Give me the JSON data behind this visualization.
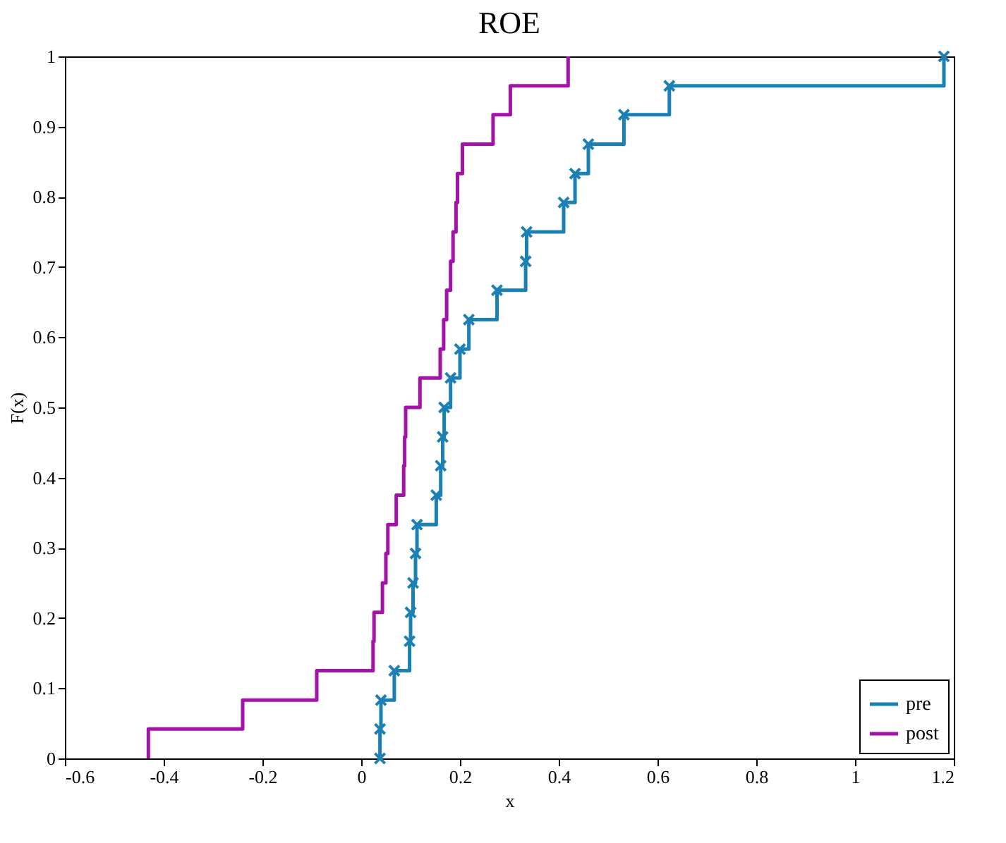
{
  "chart_data": {
    "type": "step",
    "title": "ROE",
    "xlabel": "x",
    "ylabel": "F(x)",
    "xlim": [
      -0.6,
      1.2
    ],
    "ylim": [
      0,
      1
    ],
    "xticks": [
      -0.6,
      -0.4,
      -0.2,
      0,
      0.2,
      0.4,
      0.6,
      0.8,
      1,
      1.2
    ],
    "yticks": [
      0,
      0.1,
      0.2,
      0.3,
      0.4,
      0.5,
      0.6,
      0.7,
      0.8,
      0.9,
      1
    ],
    "legend": "bottom right",
    "series": [
      {
        "name": "pre",
        "color": "#1b80b4",
        "marker": "cross",
        "x": [
          0.038,
          0.038,
          0.04,
          0.067,
          0.098,
          0.1,
          0.105,
          0.11,
          0.113,
          0.152,
          0.161,
          0.165,
          0.168,
          0.181,
          0.2,
          0.218,
          0.275,
          0.333,
          0.335,
          0.41,
          0.433,
          0.46,
          0.532,
          0.624,
          1.18
        ],
        "values": [
          0,
          0.042,
          0.083,
          0.125,
          0.167,
          0.208,
          0.25,
          0.292,
          0.333,
          0.375,
          0.417,
          0.458,
          0.5,
          0.542,
          0.583,
          0.625,
          0.667,
          0.708,
          0.75,
          0.792,
          0.833,
          0.875,
          0.917,
          0.958,
          1
        ]
      },
      {
        "name": "post",
        "color": "#a313a8",
        "marker": "none",
        "x": [
          -0.431,
          -0.431,
          -0.24,
          -0.09,
          0.024,
          0.026,
          0.043,
          0.05,
          0.054,
          0.071,
          0.086,
          0.088,
          0.09,
          0.119,
          0.16,
          0.167,
          0.173,
          0.181,
          0.186,
          0.192,
          0.195,
          0.205,
          0.267,
          0.302,
          0.419
        ],
        "values": [
          0,
          0.042,
          0.083,
          0.125,
          0.167,
          0.208,
          0.25,
          0.292,
          0.333,
          0.375,
          0.417,
          0.458,
          0.5,
          0.542,
          0.583,
          0.625,
          0.667,
          0.708,
          0.75,
          0.792,
          0.833,
          0.875,
          0.917,
          0.958,
          1
        ]
      }
    ]
  }
}
